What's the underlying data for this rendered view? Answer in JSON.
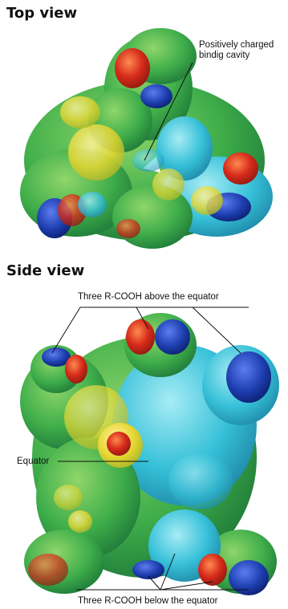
{
  "top_view": {
    "heading": "Top view",
    "annotation_line1": "Positively charged",
    "annotation_line2": "bindig cavity"
  },
  "side_view": {
    "heading": "Side view",
    "label_above": "Three R-COOH above the equator",
    "label_equator": "Equator",
    "label_below": "Three R-COOH below the equator"
  },
  "colors": {
    "green": "#3fae4a",
    "cyan": "#36c0d8",
    "yellow": "#e6d630",
    "red": "#d62a1a",
    "blue": "#1e3fb0"
  }
}
